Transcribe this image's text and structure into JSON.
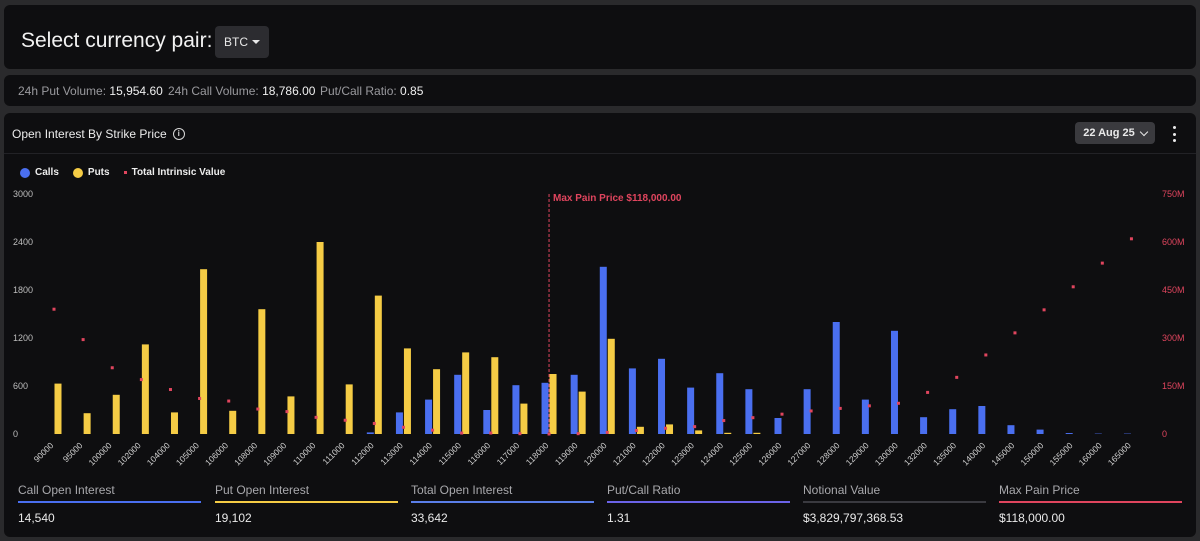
{
  "header": {
    "title": "Select currency pair:",
    "pair": "BTC"
  },
  "stats": {
    "put_volume_label": "24h Put Volume:",
    "put_volume": "15,954.60",
    "call_volume_label": "24h Call Volume:",
    "call_volume": "18,786.00",
    "ratio_label": "Put/Call Ratio:",
    "ratio": "0.85"
  },
  "panel": {
    "title": "Open Interest By Strike Price",
    "date": "22 Aug 25"
  },
  "legend": {
    "calls": "Calls",
    "puts": "Puts",
    "intrinsic": "Total Intrinsic Value"
  },
  "colors": {
    "calls": "#4a6ff0",
    "puts": "#f5cc45",
    "intrinsic": "#e0455e",
    "background": "#0e0e10"
  },
  "chart_data": {
    "type": "bar",
    "categories": [
      "90000",
      "95000",
      "100000",
      "102000",
      "104000",
      "105000",
      "106000",
      "108000",
      "109000",
      "110000",
      "111000",
      "112000",
      "113000",
      "114000",
      "115000",
      "116000",
      "117000",
      "118000",
      "119000",
      "120000",
      "121000",
      "122000",
      "123000",
      "124000",
      "125000",
      "126000",
      "127000",
      "128000",
      "129000",
      "130000",
      "132000",
      "135000",
      "140000",
      "145000",
      "150000",
      "155000",
      "160000",
      "165000"
    ],
    "series": [
      {
        "name": "Calls",
        "axis": "left",
        "values": [
          0,
          0,
          0,
          0,
          0,
          0,
          0,
          0,
          0,
          0,
          0,
          20,
          270,
          430,
          740,
          300,
          610,
          640,
          740,
          2090,
          820,
          940,
          580,
          760,
          560,
          200,
          560,
          1400,
          430,
          1290,
          210,
          310,
          350,
          110,
          55,
          12,
          5,
          5
        ]
      },
      {
        "name": "Puts",
        "axis": "left",
        "values": [
          630,
          260,
          490,
          1120,
          270,
          2060,
          290,
          1560,
          470,
          2400,
          620,
          1730,
          1070,
          810,
          1020,
          960,
          380,
          750,
          530,
          1190,
          90,
          120,
          45,
          15,
          15,
          0,
          0,
          0,
          0,
          0,
          0,
          0,
          0,
          0,
          0,
          0,
          0,
          0
        ]
      },
      {
        "name": "Total Intrinsic Value",
        "axis": "right",
        "type": "scatter",
        "values": [
          390,
          295,
          207,
          170,
          139,
          111,
          103,
          78,
          70,
          52,
          43,
          33,
          21,
          12,
          3,
          3,
          1,
          0,
          1,
          5,
          11,
          18,
          23,
          42,
          51,
          62,
          72,
          80,
          88,
          96,
          130,
          177,
          247,
          316,
          388,
          460,
          534,
          610
        ]
      }
    ],
    "ylim": [
      0,
      3000
    ],
    "yticks": [
      0,
      600,
      1200,
      1800,
      2400,
      3000
    ],
    "y2lim": [
      0,
      750
    ],
    "y2ticks": [
      "0",
      "150M",
      "300M",
      "450M",
      "600M",
      "750M"
    ],
    "annotation": {
      "label": "Max Pain Price $118,000.00",
      "category": "118000"
    },
    "legend_position": "top-left",
    "grid": false
  },
  "metrics": [
    {
      "label": "Call Open Interest",
      "value": "14,540",
      "color": "#4a6ff0"
    },
    {
      "label": "Put Open Interest",
      "value": "19,102",
      "color": "#f5cc45"
    },
    {
      "label": "Total Open Interest",
      "value": "33,642",
      "color": "#5a7ee8"
    },
    {
      "label": "Put/Call Ratio",
      "value": "1.31",
      "color": "#6b63e8"
    },
    {
      "label": "Notional Value",
      "value": "$3,829,797,368.53",
      "color": "#3a3a40"
    },
    {
      "label": "Max Pain Price",
      "value": "$118,000.00",
      "color": "#e0455e"
    }
  ]
}
